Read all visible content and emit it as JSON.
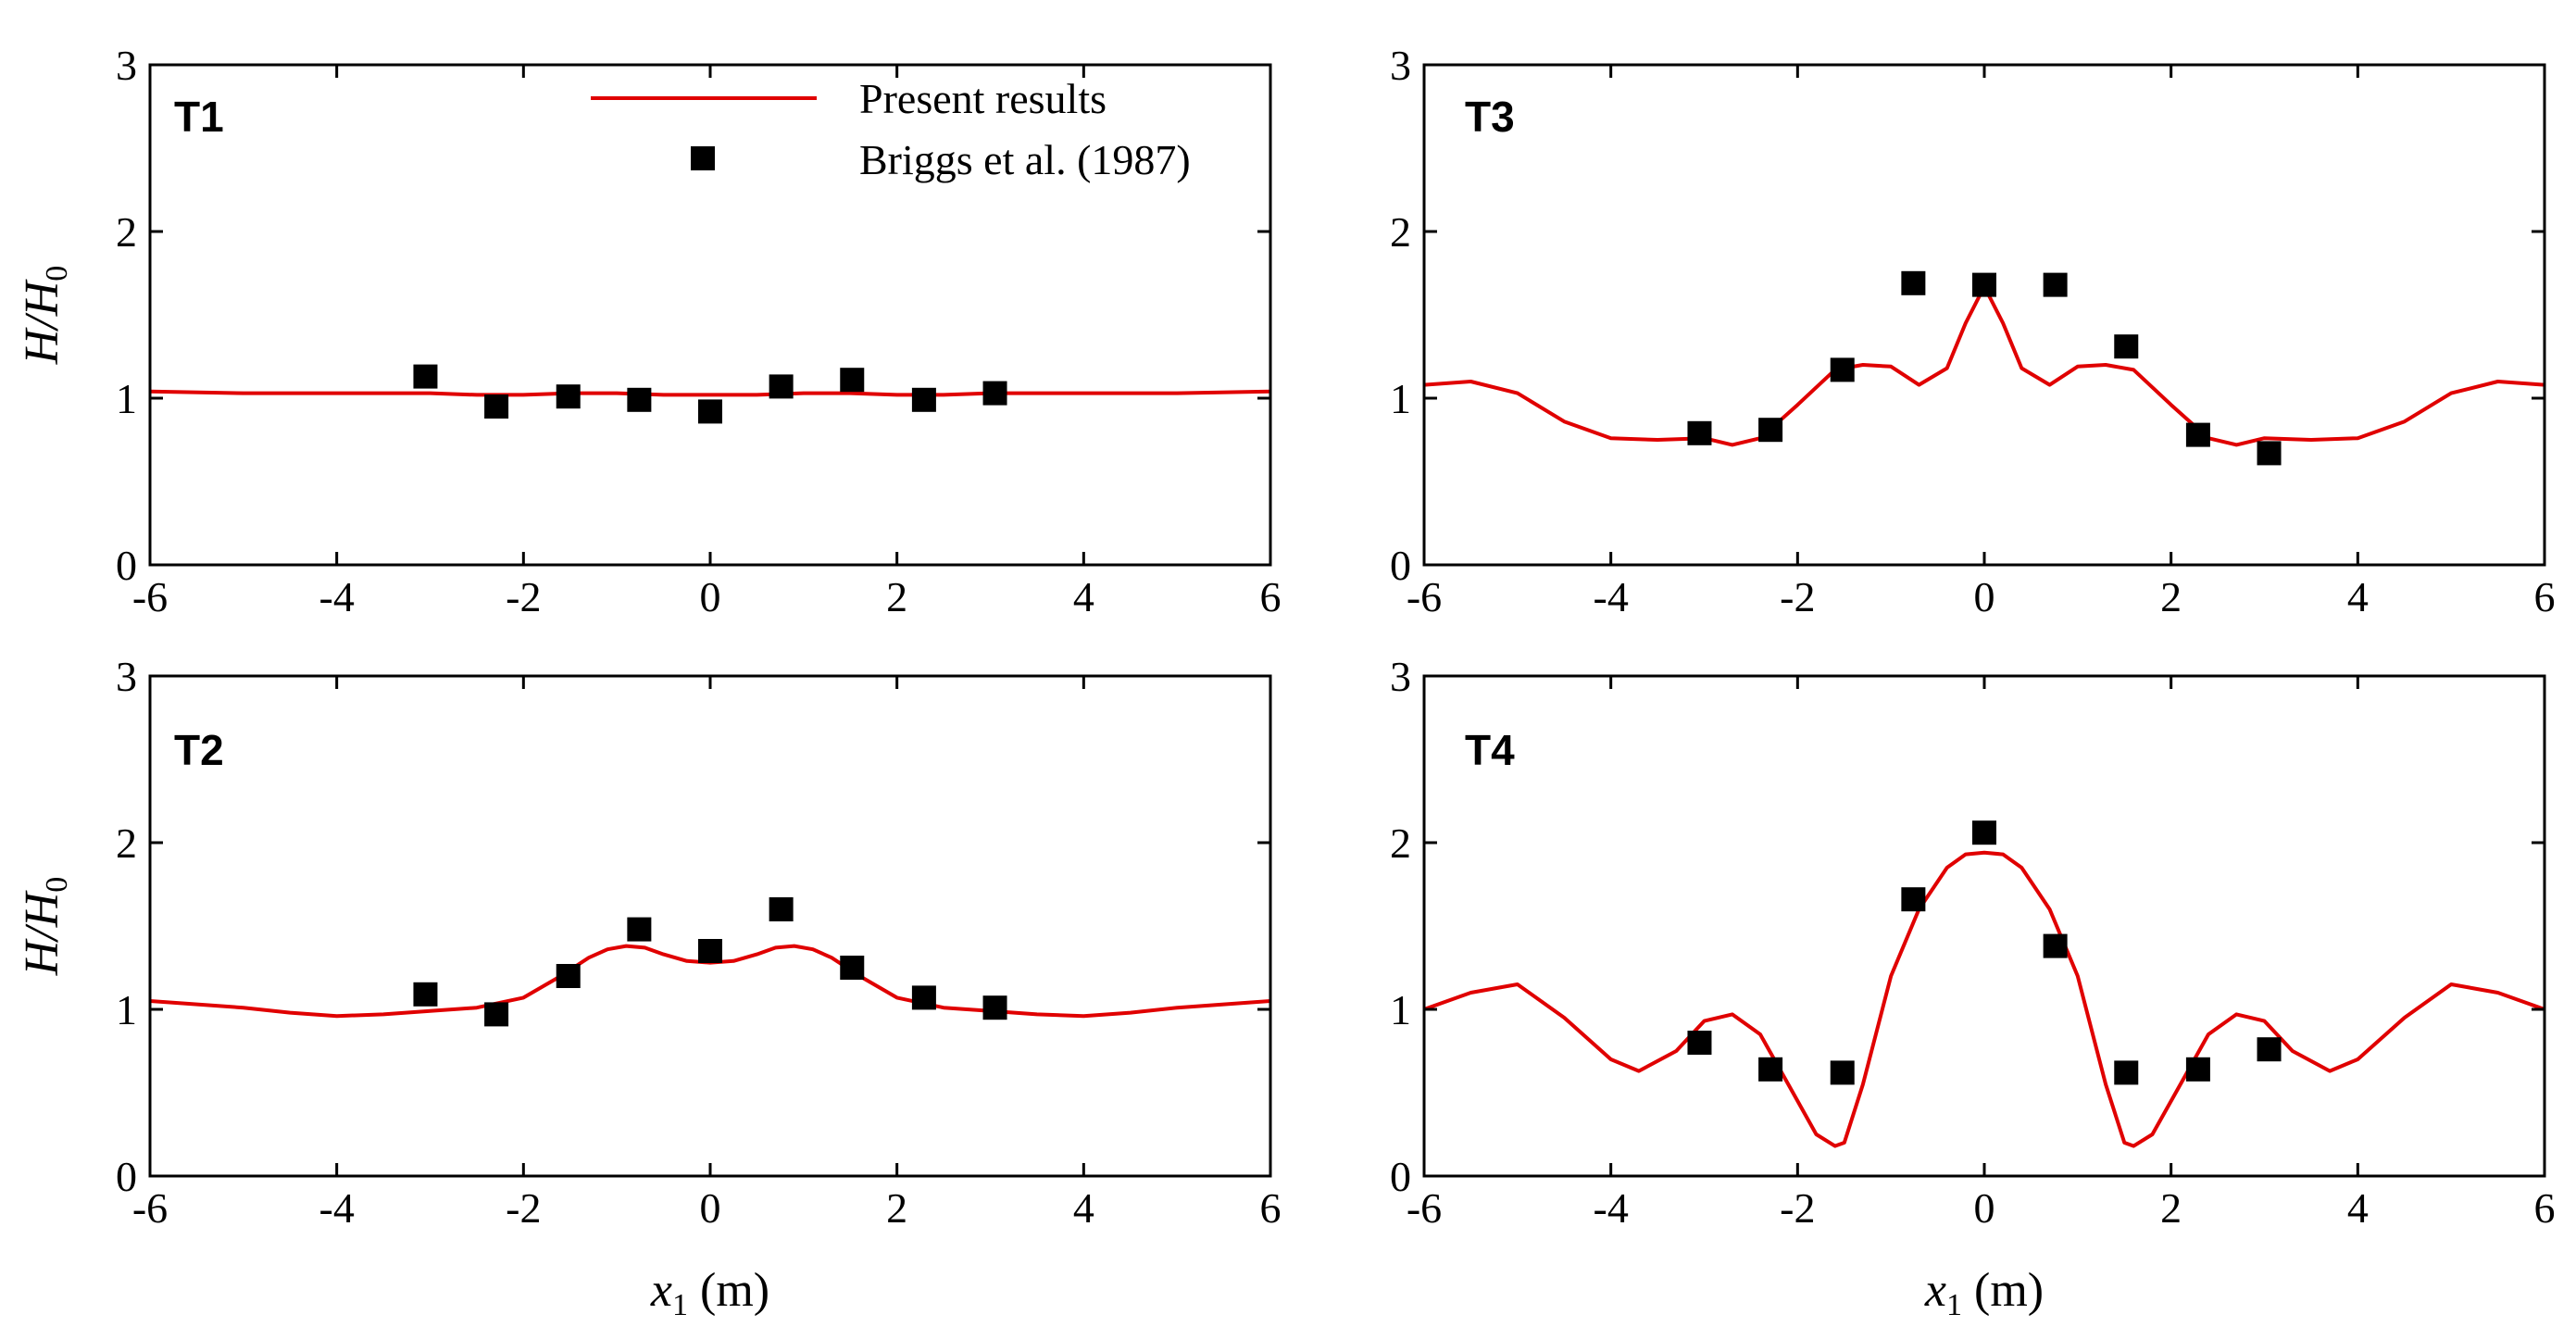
{
  "colors": {
    "line": "#e00000",
    "marker": "#000000",
    "axis": "#000000"
  },
  "legend": {
    "line_label": "Present results",
    "marker_label": "Briggs et al. (1987)"
  },
  "axis_labels": {
    "y_main": "H/H",
    "y_sub": "0",
    "x_main": "x",
    "x_sub": "1",
    "x_unit": " (m)"
  },
  "chart_data": [
    {
      "panel": "T1",
      "type": "line",
      "title": "T1",
      "xlim": [
        -6,
        6
      ],
      "ylim": [
        0,
        3
      ],
      "xticks": [
        -6,
        -4,
        -2,
        0,
        2,
        4,
        6
      ],
      "yticks": [
        0,
        1,
        2,
        3
      ],
      "series": [
        {
          "name": "Present results",
          "x": [
            -6,
            -5,
            -4,
            -3,
            -2.5,
            -2,
            -1.5,
            -1,
            -0.5,
            0,
            0.5,
            1,
            1.5,
            2,
            2.5,
            3,
            4,
            5,
            6
          ],
          "y": [
            1.04,
            1.03,
            1.03,
            1.03,
            1.02,
            1.02,
            1.03,
            1.03,
            1.02,
            1.02,
            1.02,
            1.03,
            1.03,
            1.02,
            1.02,
            1.03,
            1.03,
            1.03,
            1.04
          ]
        },
        {
          "name": "Briggs et al. (1987)",
          "x": [
            -3.05,
            -2.29,
            -1.52,
            -0.76,
            0,
            0.76,
            1.52,
            2.29,
            3.05
          ],
          "y": [
            1.13,
            0.95,
            1.01,
            0.99,
            0.92,
            1.07,
            1.11,
            0.99,
            1.03
          ]
        }
      ]
    },
    {
      "panel": "T2",
      "type": "line",
      "title": "T2",
      "xlim": [
        -6,
        6
      ],
      "ylim": [
        0,
        3
      ],
      "xticks": [
        -6,
        -4,
        -2,
        0,
        2,
        4,
        6
      ],
      "yticks": [
        0,
        1,
        2,
        3
      ],
      "series": [
        {
          "name": "Present results",
          "x": [
            -6,
            -5,
            -4.5,
            -4,
            -3.5,
            -3,
            -2.5,
            -2,
            -1.6,
            -1.3,
            -1.1,
            -0.9,
            -0.7,
            -0.5,
            -0.25,
            0,
            0.25,
            0.5,
            0.7,
            0.9,
            1.1,
            1.3,
            1.6,
            2,
            2.5,
            3,
            3.5,
            4,
            4.5,
            5,
            6
          ],
          "y": [
            1.05,
            1.01,
            0.98,
            0.96,
            0.97,
            0.99,
            1.01,
            1.07,
            1.2,
            1.31,
            1.36,
            1.38,
            1.37,
            1.33,
            1.29,
            1.28,
            1.29,
            1.33,
            1.37,
            1.38,
            1.36,
            1.31,
            1.2,
            1.07,
            1.01,
            0.99,
            0.97,
            0.96,
            0.98,
            1.01,
            1.05
          ]
        },
        {
          "name": "Briggs et al. (1987)",
          "x": [
            -3.05,
            -2.29,
            -1.52,
            -0.76,
            0,
            0.76,
            1.52,
            2.29,
            3.05
          ],
          "y": [
            1.09,
            0.97,
            1.2,
            1.48,
            1.35,
            1.6,
            1.25,
            1.07,
            1.01
          ]
        }
      ]
    },
    {
      "panel": "T3",
      "type": "line",
      "title": "T3",
      "xlim": [
        -6,
        6
      ],
      "ylim": [
        0,
        3
      ],
      "xticks": [
        -6,
        -4,
        -2,
        0,
        2,
        4,
        6
      ],
      "yticks": [
        0,
        1,
        2,
        3
      ],
      "series": [
        {
          "name": "Present results",
          "x": [
            -6,
            -5.5,
            -5,
            -4.5,
            -4,
            -3.5,
            -3,
            -2.7,
            -2.4,
            -2,
            -1.6,
            -1.3,
            -1,
            -0.7,
            -0.4,
            -0.2,
            0,
            0.2,
            0.4,
            0.7,
            1,
            1.3,
            1.6,
            2,
            2.4,
            2.7,
            3,
            3.5,
            4,
            4.5,
            5,
            5.5,
            6
          ],
          "y": [
            1.08,
            1.1,
            1.03,
            0.86,
            0.76,
            0.75,
            0.76,
            0.72,
            0.76,
            0.96,
            1.17,
            1.2,
            1.19,
            1.08,
            1.18,
            1.45,
            1.67,
            1.45,
            1.18,
            1.08,
            1.19,
            1.2,
            1.17,
            0.96,
            0.76,
            0.72,
            0.76,
            0.75,
            0.76,
            0.86,
            1.03,
            1.1,
            1.08
          ]
        },
        {
          "name": "Briggs et al. (1987)",
          "x": [
            -3.05,
            -2.29,
            -1.52,
            -0.76,
            0,
            0.76,
            1.52,
            2.29,
            3.05
          ],
          "y": [
            0.79,
            0.81,
            1.17,
            1.69,
            1.68,
            1.68,
            1.31,
            0.78,
            0.67
          ]
        }
      ]
    },
    {
      "panel": "T4",
      "type": "line",
      "title": "T4",
      "xlim": [
        -6,
        6
      ],
      "ylim": [
        0,
        3
      ],
      "xticks": [
        -6,
        -4,
        -2,
        0,
        2,
        4,
        6
      ],
      "yticks": [
        0,
        1,
        2,
        3
      ],
      "series": [
        {
          "name": "Present results",
          "x": [
            -6,
            -5.5,
            -5,
            -4.5,
            -4,
            -3.7,
            -3.3,
            -3,
            -2.7,
            -2.4,
            -2.1,
            -1.8,
            -1.6,
            -1.5,
            -1.3,
            -1,
            -0.7,
            -0.4,
            -0.2,
            0,
            0.2,
            0.4,
            0.7,
            1,
            1.3,
            1.5,
            1.6,
            1.8,
            2.1,
            2.4,
            2.7,
            3,
            3.3,
            3.7,
            4,
            4.5,
            5,
            5.5,
            6
          ],
          "y": [
            1.0,
            1.1,
            1.15,
            0.95,
            0.7,
            0.63,
            0.75,
            0.93,
            0.97,
            0.85,
            0.55,
            0.25,
            0.18,
            0.2,
            0.55,
            1.2,
            1.6,
            1.85,
            1.93,
            1.94,
            1.93,
            1.85,
            1.6,
            1.2,
            0.55,
            0.2,
            0.18,
            0.25,
            0.55,
            0.85,
            0.97,
            0.93,
            0.75,
            0.63,
            0.7,
            0.95,
            1.15,
            1.1,
            1.0
          ]
        },
        {
          "name": "Briggs et al. (1987)",
          "x": [
            -3.05,
            -2.29,
            -1.52,
            -0.76,
            0,
            0.76,
            1.52,
            2.29,
            3.05
          ],
          "y": [
            0.8,
            0.64,
            0.62,
            1.66,
            2.06,
            1.38,
            0.62,
            0.64,
            0.76
          ]
        }
      ]
    }
  ]
}
